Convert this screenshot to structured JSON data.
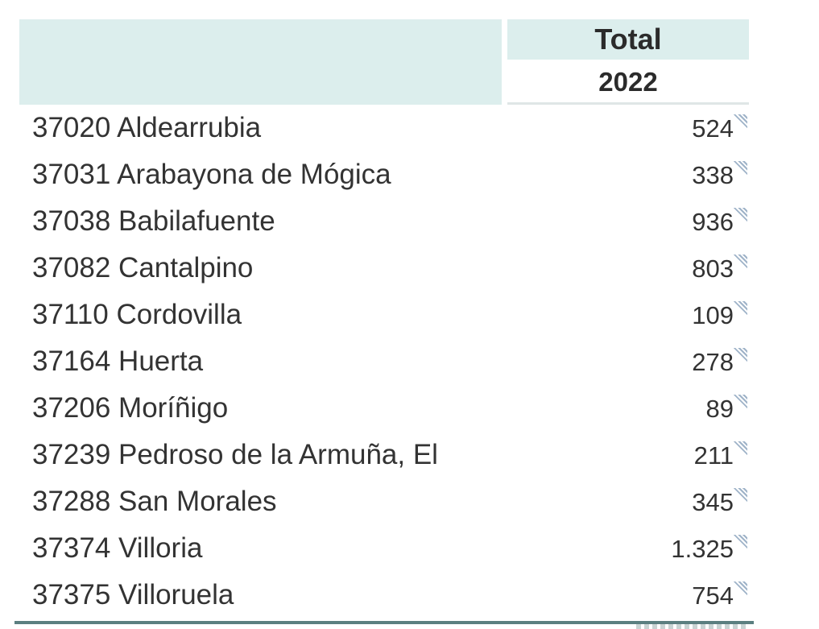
{
  "header": {
    "total_label": "Total",
    "year_label": "2022"
  },
  "rows": [
    {
      "label": "37020 Aldearrubia",
      "value": "524"
    },
    {
      "label": "37031 Arabayona de Mógica",
      "value": "338"
    },
    {
      "label": "37038 Babilafuente",
      "value": "936"
    },
    {
      "label": "37082 Cantalpino",
      "value": "803"
    },
    {
      "label": "37110 Cordovilla",
      "value": "109"
    },
    {
      "label": "37164 Huerta",
      "value": "278"
    },
    {
      "label": "37206 Moríñigo",
      "value": "89"
    },
    {
      "label": "37239 Pedroso de la Armuña, El",
      "value": "211"
    },
    {
      "label": "37288 San Morales",
      "value": "345"
    },
    {
      "label": "37374 Villoria",
      "value": "1.325"
    },
    {
      "label": "37375 Villoruela",
      "value": "754"
    }
  ],
  "colors": {
    "header_bg": "#dceeed",
    "text": "#333333",
    "bottom_rule": "#5b7f80",
    "note_icon": "#9fb3c8"
  },
  "icons": {
    "cell_note": "note-corner-icon"
  }
}
